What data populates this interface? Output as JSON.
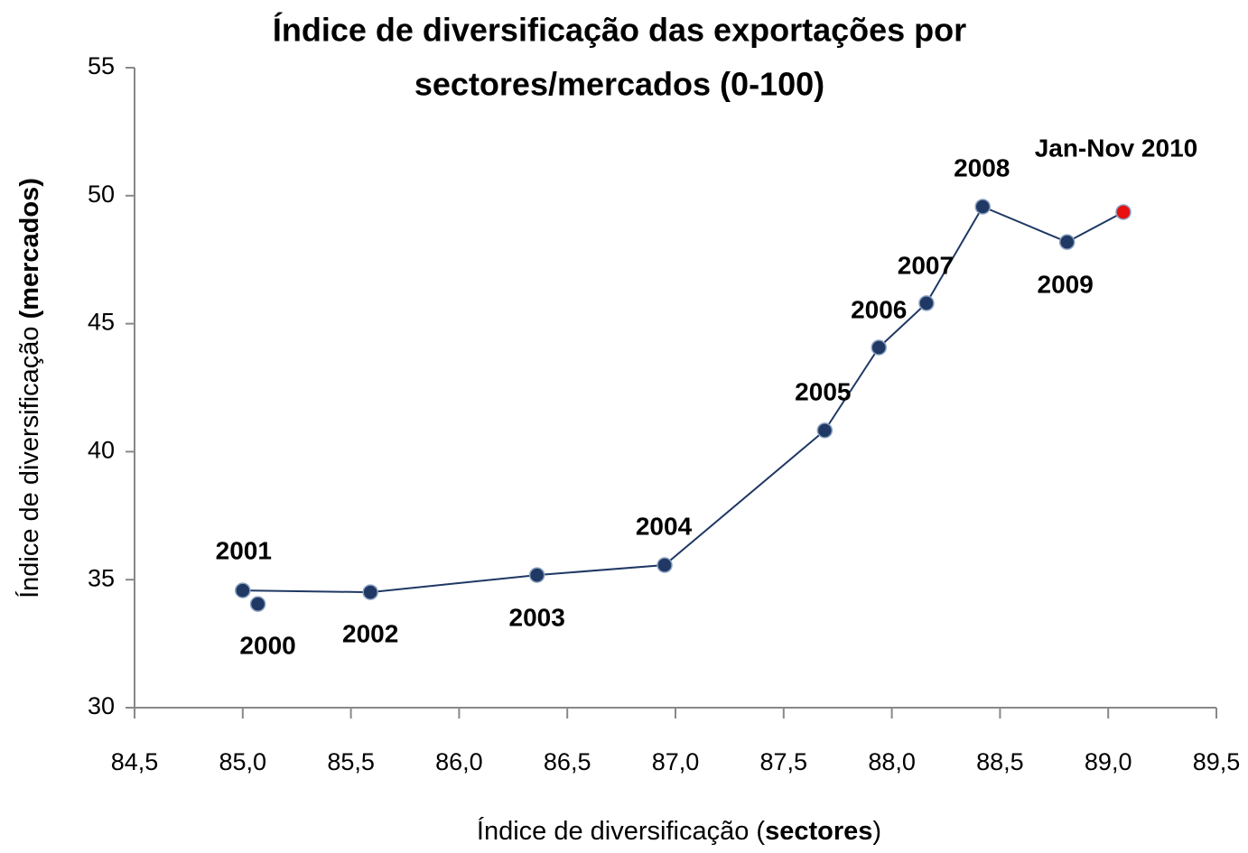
{
  "chart_data": {
    "type": "scatter",
    "title": [
      "Índice de diversificação das exportações por",
      "sectores/mercados (0-100)"
    ],
    "xlabel": [
      "Índice de diversificação (",
      "sectores",
      ")"
    ],
    "ylabel": [
      "Índice de diversificação ",
      "(mercados)"
    ],
    "series": [
      {
        "labels": [
          "2000",
          "2001",
          "2002",
          "2003",
          "2004",
          "2005",
          "2006",
          "2007",
          "2008",
          "2009",
          "Jan-Nov 2010"
        ],
        "x": [
          85.07,
          85.0,
          85.59,
          86.36,
          86.95,
          87.69,
          87.94,
          88.16,
          88.42,
          88.81,
          89.07
        ],
        "values": [
          34.05,
          34.58,
          34.51,
          35.18,
          35.57,
          40.83,
          44.07,
          45.8,
          49.57,
          48.19,
          49.36
        ],
        "colors": [
          "#1f3864",
          "#1f3864",
          "#1f3864",
          "#1f3864",
          "#1f3864",
          "#1f3864",
          "#1f3864",
          "#1f3864",
          "#1f3864",
          "#1f3864",
          "#e81010"
        ],
        "line_color": "#1f3864"
      }
    ],
    "xlim": [
      84.5,
      89.5
    ],
    "xticks": [
      {
        "value": 84.5,
        "label": "84,5"
      },
      {
        "value": 85,
        "label": "85,0"
      },
      {
        "value": 85.5,
        "label": "85,5"
      },
      {
        "value": 86,
        "label": "86,0"
      },
      {
        "value": 86.5,
        "label": "86,5"
      },
      {
        "value": 87,
        "label": "87,0"
      },
      {
        "value": 87.5,
        "label": "87,5"
      },
      {
        "value": 88,
        "label": "88,0"
      },
      {
        "value": 88.5,
        "label": "88,5"
      },
      {
        "value": 89,
        "label": "89,0"
      },
      {
        "value": 89.5,
        "label": "89,5"
      }
    ],
    "ylim": [
      30,
      55
    ],
    "yticks": [
      30,
      35,
      40,
      45,
      50,
      55
    ]
  }
}
